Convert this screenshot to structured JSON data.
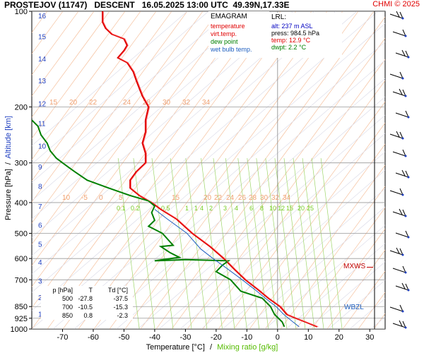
{
  "header": {
    "title": "PROSTEJOV (11747)   DESCENT   16.05.2025 13:00 UTC  49.39N,17.33E",
    "credit": "CHMI © 2025"
  },
  "legend": {
    "title": "EMAGRAM",
    "items": [
      {
        "label": "temperature",
        "color": "#e00000"
      },
      {
        "label": "virt.temp.",
        "color": "#e00000"
      },
      {
        "label": "dew point",
        "color": "#008000"
      },
      {
        "label": "wet bulb temp.",
        "color": "#2060c0"
      }
    ]
  },
  "lrl": {
    "title": "LRL:",
    "alt": "alt: 237 m ASL",
    "press": "press: 984.5 hPa",
    "temp": "temp: 12.9 °C",
    "dwpt": "dwpt: 2.2 °C"
  },
  "table": {
    "header": [
      "p [hPa]",
      "T",
      "Td [°C]"
    ],
    "rows": [
      [
        "500",
        "-27.8",
        "-37.5"
      ],
      [
        "700",
        "-10.5",
        "-15.3"
      ],
      [
        "850",
        "0.8",
        "-2.3"
      ]
    ]
  },
  "levels": {
    "mxws": "MXWS",
    "wbzl": "WBZL"
  },
  "chart_data": {
    "type": "line",
    "title": "EMAGRAM",
    "xlabel": "Temperature [°C]",
    "xlabel2": "Mixing ratio [g/kg]",
    "xlabel_sep": "/",
    "ylabel": "Pressure [hPa]",
    "ylabel_sep": "/",
    "ylabel2": "Altitude [km]",
    "x_scale": "linear",
    "y_scale": "log",
    "xlim": [
      -80,
      35
    ],
    "ylim": [
      1000,
      100
    ],
    "x_ticks": [
      -70,
      -60,
      -50,
      -40,
      -30,
      -20,
      -10,
      0,
      10,
      20,
      30
    ],
    "y_ticks": [
      100,
      200,
      300,
      400,
      500,
      600,
      700,
      850,
      925,
      1000
    ],
    "altitude_ticks": [
      {
        "km": 1,
        "p": 895
      },
      {
        "km": 2,
        "p": 795
      },
      {
        "km": 3,
        "p": 705
      },
      {
        "km": 4,
        "p": 615
      },
      {
        "km": 5,
        "p": 540
      },
      {
        "km": 6,
        "p": 470
      },
      {
        "km": 7,
        "p": 410
      },
      {
        "km": 8,
        "p": 355
      },
      {
        "km": 9,
        "p": 308
      },
      {
        "km": 10,
        "p": 265
      },
      {
        "km": 11,
        "p": 225
      },
      {
        "km": 12,
        "p": 195
      },
      {
        "km": 13,
        "p": 165
      },
      {
        "km": 14,
        "p": 141
      },
      {
        "km": 15,
        "p": 120
      },
      {
        "km": 16,
        "p": 103
      }
    ],
    "mixing_ratio_labels_upper": [
      "15",
      "20",
      "22",
      "24",
      "28",
      "30",
      "32",
      "34"
    ],
    "mixing_ratio_labels_mid": [
      "10",
      "-5",
      "0",
      "5",
      "15",
      "20",
      "22",
      "24",
      "26",
      "28",
      "30",
      "32",
      "34"
    ],
    "mixing_ratio_labels_lower": [
      "0.1",
      "0.2",
      "0.5",
      "1",
      "1",
      "4",
      "2",
      "3",
      "4",
      "6",
      "8",
      "10",
      "12",
      "15",
      "20",
      "25"
    ],
    "series": [
      {
        "name": "temperature",
        "color": "#e00000",
        "points": [
          [
            12.9,
            984
          ],
          [
            9,
            950
          ],
          [
            6,
            925
          ],
          [
            3,
            900
          ],
          [
            0.8,
            850
          ],
          [
            -3,
            800
          ],
          [
            -6.5,
            750
          ],
          [
            -10.5,
            700
          ],
          [
            -14,
            650
          ],
          [
            -17.5,
            600
          ],
          [
            -22,
            550
          ],
          [
            -27.8,
            500
          ],
          [
            -33,
            450
          ],
          [
            -38,
            420
          ],
          [
            -41,
            400
          ],
          [
            -45,
            380
          ],
          [
            -48,
            360
          ],
          [
            -48,
            340
          ],
          [
            -46,
            320
          ],
          [
            -43,
            300
          ],
          [
            -43,
            280
          ],
          [
            -44,
            260
          ],
          [
            -43,
            240
          ],
          [
            -43,
            220
          ],
          [
            -42,
            200
          ],
          [
            -44,
            185
          ],
          [
            -45,
            175
          ],
          [
            -46,
            165
          ],
          [
            -47,
            155
          ],
          [
            -49,
            145
          ],
          [
            -52,
            140
          ],
          [
            -50,
            133
          ],
          [
            -49,
            128
          ],
          [
            -50,
            122
          ],
          [
            -54,
            118
          ],
          [
            -56,
            113
          ],
          [
            -57,
            108
          ],
          [
            -57,
            103
          ],
          [
            -57,
            100
          ]
        ]
      },
      {
        "name": "dew point",
        "color": "#008000",
        "points": [
          [
            2.2,
            984
          ],
          [
            1.5,
            950
          ],
          [
            -1,
            900
          ],
          [
            -2.3,
            850
          ],
          [
            -5,
            800
          ],
          [
            -12,
            760
          ],
          [
            -15.3,
            700
          ],
          [
            -20,
            660
          ],
          [
            -18,
            630
          ],
          [
            -16,
            610
          ],
          [
            -30,
            605
          ],
          [
            -40,
            610
          ],
          [
            -32,
            595
          ],
          [
            -35,
            575
          ],
          [
            -38,
            550
          ],
          [
            -34,
            545
          ],
          [
            -37.5,
            500
          ],
          [
            -42,
            475
          ],
          [
            -40,
            455
          ],
          [
            -41,
            430
          ],
          [
            -40,
            410
          ],
          [
            -42,
            395
          ],
          [
            -48,
            380
          ],
          [
            -55,
            360
          ],
          [
            -62,
            340
          ],
          [
            -66,
            320
          ],
          [
            -68,
            310
          ],
          [
            -70,
            300
          ],
          [
            -72,
            290
          ],
          [
            -74,
            275
          ],
          [
            -75,
            260
          ],
          [
            -77,
            245
          ],
          [
            -78,
            230
          ],
          [
            -80,
            220
          ]
        ]
      },
      {
        "name": "wet bulb temp.",
        "color": "#2060c0",
        "points": [
          [
            7,
            984
          ],
          [
            5,
            950
          ],
          [
            2,
            900
          ],
          [
            -0.5,
            850
          ],
          [
            -4,
            800
          ],
          [
            -7.5,
            750
          ],
          [
            -11.5,
            700
          ],
          [
            -16,
            650
          ],
          [
            -21,
            600
          ],
          [
            -25,
            560
          ],
          [
            -29.5,
            500
          ],
          [
            -36,
            450
          ],
          [
            -40,
            420
          ]
        ]
      }
    ]
  }
}
